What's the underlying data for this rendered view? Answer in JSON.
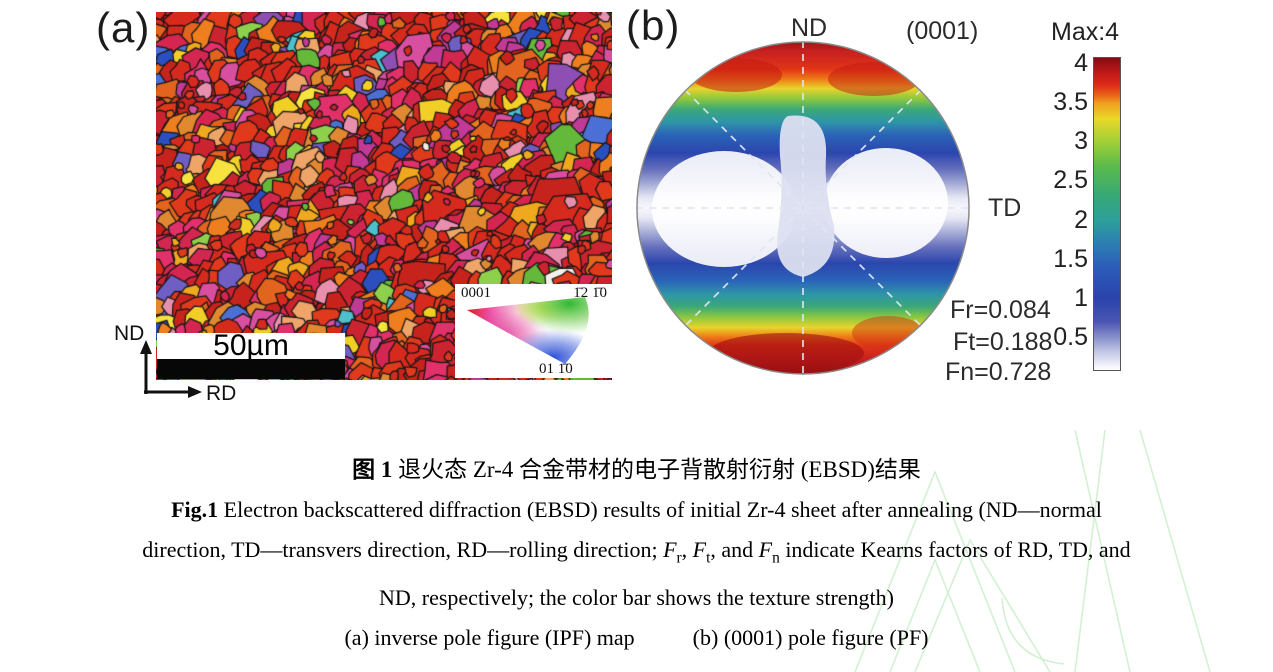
{
  "figure": {
    "panel_a": {
      "label": "(a)",
      "scale_bar_text": "50µm",
      "axis_nd": "ND",
      "axis_rd": "RD",
      "ipf_key": {
        "corner_0001": "0001",
        "corner_1210": "1̄2 1̄0",
        "corner_0110": "01 1̄0"
      }
    },
    "panel_b": {
      "label": "(b)",
      "pole_nd": "ND",
      "pole_td": "TD",
      "plane": "(0001)",
      "kearns_fr": "Fr=0.084",
      "kearns_ft": "Ft=0.188",
      "kearns_fn": "Fn=0.728"
    },
    "colorbar": {
      "max": "Max:4",
      "ticks": [
        "4",
        "3.5",
        "3",
        "2.5",
        "2",
        "1.5",
        "1",
        "0.5"
      ]
    }
  },
  "caption": {
    "zh_bold": "图 1",
    "zh_text": " 退火态 Zr-4 合金带材的电子背散射衍射 (EBSD)结果",
    "en_bold": "Fig.1",
    "en_line1": " Electron backscattered diffraction (EBSD) results of initial Zr-4 sheet after annealing (ND—normal",
    "en_line2_pre": "direction, TD—transvers direction, RD—rolling direction; ",
    "f1": "F",
    "f1sub": "r",
    "sep1": ", ",
    "f2": "F",
    "f2sub": "t",
    "sep2": ", and ",
    "f3": "F",
    "f3sub": "n",
    "en_line2_post": " indicate Kearns factors of RD, TD, and",
    "en_line3": "ND, respectively; the color bar shows the texture strength)",
    "sub_a": "(a) inverse pole figure (IPF) map",
    "sub_b": "(b) (0001) pole figure (PF)"
  },
  "chart_data": {
    "type": "heatmap",
    "title": "(0001) pole figure of annealed Zr-4 sheet",
    "pole_figure": {
      "plane": "(0001)",
      "top_axis": "ND",
      "right_axis": "TD",
      "max_intensity": 4,
      "intensity_pattern": "high (red, ~4) at top and bottom poles along ND, low (white, ~0) in center band toward TD"
    },
    "colorbar": {
      "label": "texture strength",
      "max_label": "Max:4",
      "ticks": [
        4,
        3.5,
        3,
        2.5,
        2,
        1.5,
        1,
        0.5
      ]
    },
    "kearns_factors": {
      "Fr": 0.084,
      "Ft": 0.188,
      "Fn": 0.728
    },
    "ipf_map": {
      "scale_bar_um": 50,
      "axes": [
        "ND",
        "RD"
      ],
      "key_poles": [
        "0001",
        "-12-10",
        "01-10"
      ]
    }
  }
}
